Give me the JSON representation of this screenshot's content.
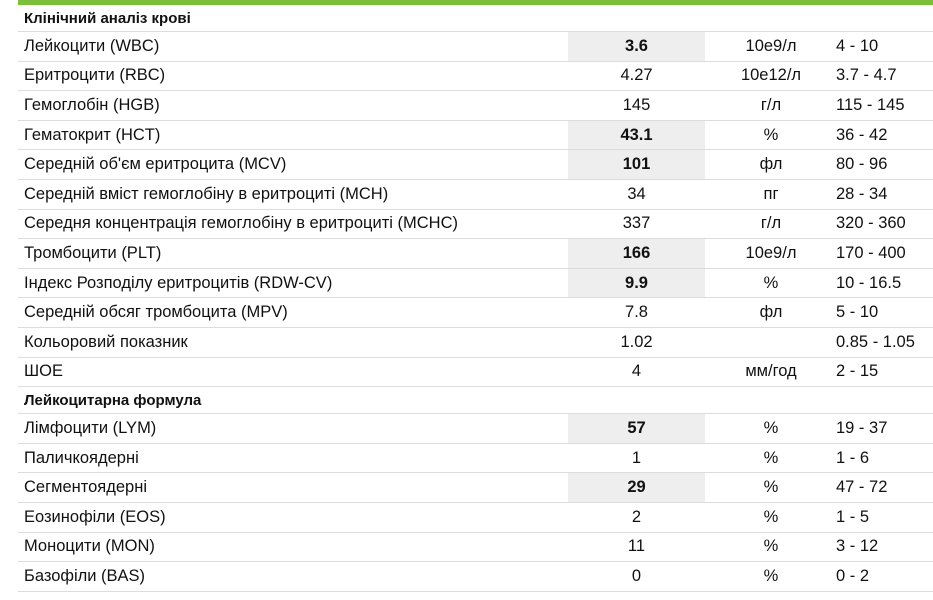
{
  "sections": [
    {
      "title": "Клінічний аналіз крові",
      "rows": [
        {
          "name": "Лейкоцити (WBC)",
          "value": "3.6",
          "unit": "10е9/л",
          "range": "4 - 10",
          "flag": true
        },
        {
          "name": "Еритроцити (RBC)",
          "value": "4.27",
          "unit": "10е12/л",
          "range": "3.7 - 4.7",
          "flag": false
        },
        {
          "name": "Гемоглобін (HGB)",
          "value": "145",
          "unit": "г/л",
          "range": "115 - 145",
          "flag": false
        },
        {
          "name": "Гематокрит (HCT)",
          "value": "43.1",
          "unit": "%",
          "range": "36 - 42",
          "flag": true
        },
        {
          "name": "Середній об'єм еритроцита (MCV)",
          "value": "101",
          "unit": "фл",
          "range": "80 - 96",
          "flag": true
        },
        {
          "name": "Середній вміст гемоглобіну в еритроциті (MCH)",
          "value": "34",
          "unit": "пг",
          "range": "28 - 34",
          "flag": false
        },
        {
          "name": "Середня концентрація гемоглобіну в еритроциті (MCHC)",
          "value": "337",
          "unit": "г/л",
          "range": "320 - 360",
          "flag": false
        },
        {
          "name": "Тромбоцити (PLT)",
          "value": "166",
          "unit": "10е9/л",
          "range": "170 - 400",
          "flag": true
        },
        {
          "name": "Індекс Розподілу еритроцитів (RDW-CV)",
          "value": "9.9",
          "unit": "%",
          "range": "10 - 16.5",
          "flag": true
        },
        {
          "name": "Середній обсяг тромбоцита (MPV)",
          "value": "7.8",
          "unit": "фл",
          "range": "5 - 10",
          "flag": false
        },
        {
          "name": "Кольоровий показник",
          "value": "1.02",
          "unit": "",
          "range": "0.85 - 1.05",
          "flag": false
        },
        {
          "name": "ШОЕ",
          "value": "4",
          "unit": "мм/год",
          "range": "2 - 15",
          "flag": false
        }
      ]
    },
    {
      "title": "Лейкоцитарна формула",
      "rows": [
        {
          "name": "Лімфоцити (LYM)",
          "value": "57",
          "unit": "%",
          "range": "19 - 37",
          "flag": true
        },
        {
          "name": "Паличкоядерні",
          "value": "1",
          "unit": "%",
          "range": "1 - 6",
          "flag": false
        },
        {
          "name": "Сегментоядерні",
          "value": "29",
          "unit": "%",
          "range": "47 - 72",
          "flag": true
        },
        {
          "name": "Еозинофіли (EOS)",
          "value": "2",
          "unit": "%",
          "range": "1 - 5",
          "flag": false
        },
        {
          "name": "Моноцити (MON)",
          "value": "11",
          "unit": "%",
          "range": "3 - 12",
          "flag": false
        },
        {
          "name": "Базофіли (BAS)",
          "value": "0",
          "unit": "%",
          "range": "0 - 2",
          "flag": false
        }
      ]
    }
  ],
  "colors": {
    "accent_bar": "#7bbf3a",
    "flag_background": "#eeeeee",
    "row_divider": "#dcdcdc"
  }
}
